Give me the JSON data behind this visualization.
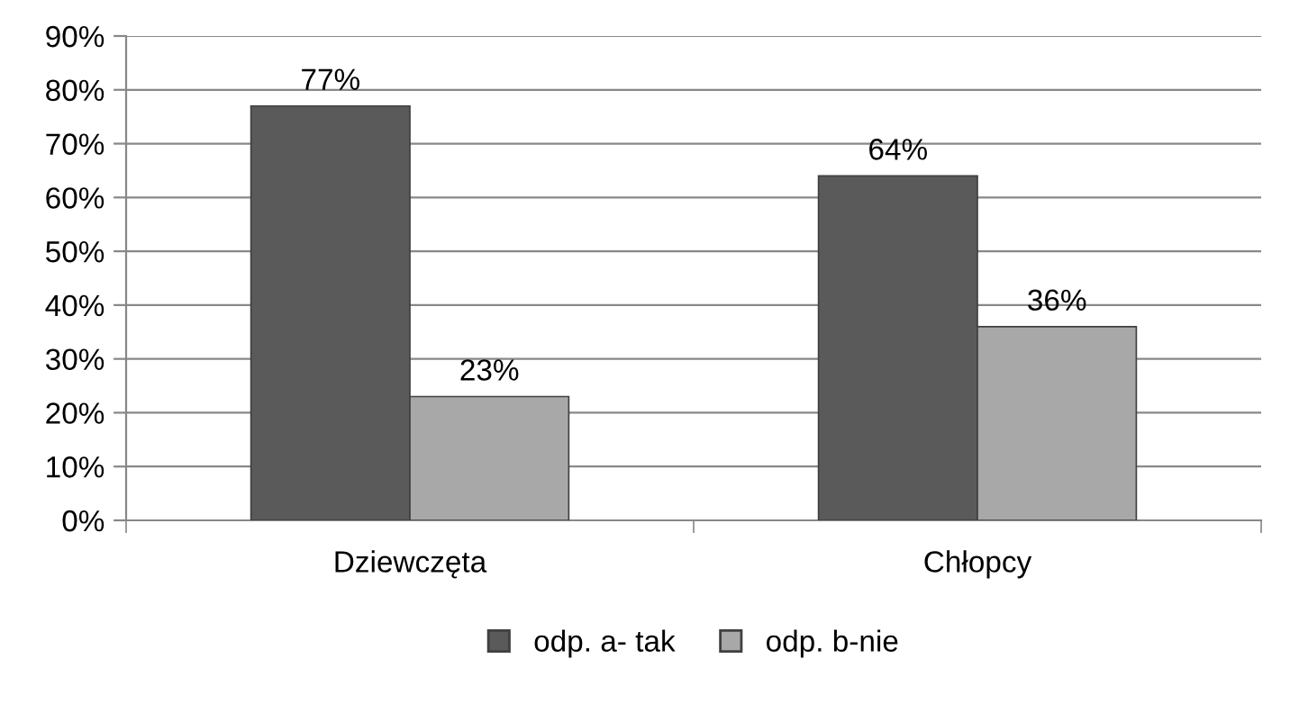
{
  "chart_data": {
    "type": "bar",
    "categories": [
      "Dziewczęta",
      "Chłopcy"
    ],
    "series": [
      {
        "name": "odp. a- tak",
        "color": "#5a5a5a",
        "values": [
          77,
          64
        ],
        "value_labels": [
          "77%",
          "64%"
        ]
      },
      {
        "name": "odp. b-nie",
        "color": "#a8a8a8",
        "values": [
          23,
          36
        ],
        "value_labels": [
          "23%",
          "36%"
        ]
      }
    ],
    "ylim": [
      0,
      90
    ],
    "yticks": [
      {
        "value": 0,
        "label": "0%"
      },
      {
        "value": 10,
        "label": "10%"
      },
      {
        "value": 20,
        "label": "20%"
      },
      {
        "value": 30,
        "label": "30%"
      },
      {
        "value": 40,
        "label": "40%"
      },
      {
        "value": 50,
        "label": "50%"
      },
      {
        "value": 60,
        "label": "60%"
      },
      {
        "value": 70,
        "label": "70%"
      },
      {
        "value": 80,
        "label": "80%"
      },
      {
        "value": 90,
        "label": "90%"
      }
    ],
    "grid": "y",
    "legend": "bottom"
  }
}
